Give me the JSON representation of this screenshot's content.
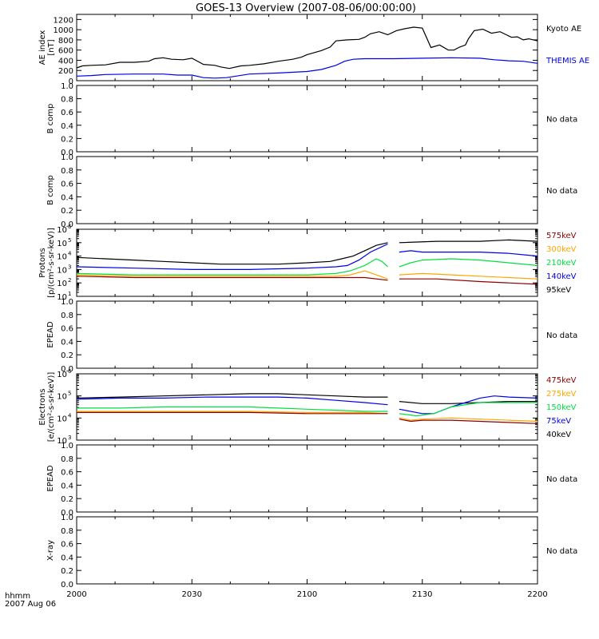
{
  "title": "GOES-13 Overview (2007-08-06/00:00:00)",
  "x_axis": {
    "ticks": [
      "2000",
      "2030",
      "2100",
      "2130",
      "2200"
    ],
    "label_line1": "hhmm",
    "label_line2": "2007 Aug 06"
  },
  "colors": {
    "black": "#000000",
    "blue": "#0000e6",
    "green": "#00e040",
    "orange": "#ffa500",
    "darkred": "#8b0000"
  },
  "no_data_label": "No data",
  "chart_data": [
    {
      "id": "ae",
      "type": "line",
      "ylabel": [
        "AE index",
        "[nT]"
      ],
      "yticks": [
        "1200",
        "1000",
        "800",
        "600",
        "400",
        "200",
        "0"
      ],
      "ylim": [
        0,
        1300
      ],
      "legend": [
        {
          "label": "Kyoto AE",
          "color": "#000000"
        },
        {
          "label": "THEMIS AE",
          "color": "#0000e6"
        }
      ],
      "series": [
        {
          "name": "Kyoto AE",
          "color": "#000000",
          "x": [
            0,
            2,
            5,
            10,
            15,
            20,
            25,
            27,
            30,
            33,
            37,
            40,
            44,
            48,
            50,
            53,
            57,
            60,
            65,
            70,
            75,
            78,
            80,
            85,
            88,
            90,
            94,
            98,
            100,
            102,
            105,
            108,
            111,
            114,
            117,
            120,
            123,
            126,
            129,
            131,
            133,
            135,
            136,
            138,
            141,
            144,
            147,
            151,
            153,
            155,
            157,
            160
          ],
          "values": [
            250,
            290,
            300,
            310,
            360,
            360,
            380,
            430,
            450,
            420,
            410,
            440,
            320,
            300,
            270,
            240,
            290,
            300,
            330,
            380,
            420,
            460,
            510,
            590,
            660,
            780,
            800,
            810,
            850,
            920,
            960,
            900,
            980,
            1020,
            1050,
            1030,
            650,
            700,
            600,
            600,
            660,
            700,
            820,
            980,
            1010,
            930,
            960,
            850,
            860,
            800,
            820,
            780
          ]
        },
        {
          "name": "THEMIS AE",
          "color": "#0000e6",
          "x": [
            0,
            5,
            10,
            20,
            30,
            35,
            40,
            44,
            48,
            52,
            60,
            70,
            80,
            85,
            90,
            93,
            96,
            100,
            110,
            120,
            130,
            140,
            145,
            150,
            155,
            160
          ],
          "values": [
            90,
            100,
            120,
            130,
            130,
            110,
            110,
            60,
            50,
            60,
            130,
            150,
            180,
            220,
            300,
            380,
            420,
            430,
            430,
            440,
            450,
            440,
            410,
            390,
            380,
            340
          ]
        }
      ]
    },
    {
      "id": "bcomp1",
      "type": "line",
      "ylabel": [
        "B comp"
      ],
      "yticks": [
        "1.0",
        "0.8",
        "0.6",
        "0.4",
        "0.2",
        "0.0"
      ],
      "ylim": [
        0,
        1
      ],
      "nodata": true,
      "series": []
    },
    {
      "id": "bcomp2",
      "type": "line",
      "ylabel": [
        "B comp"
      ],
      "yticks": [
        "1.0",
        "0.8",
        "0.6",
        "0.4",
        "0.2",
        "0.0"
      ],
      "ylim": [
        0,
        1
      ],
      "nodata": true,
      "series": []
    },
    {
      "id": "protons",
      "type": "line",
      "log": true,
      "ylabel": [
        "Protons",
        "[p/(cm²-s-sr-keV)]"
      ],
      "ytick_exps": [
        "6",
        "5",
        "4",
        "3",
        "2",
        "1"
      ],
      "ylim_log10": [
        1,
        6
      ],
      "legend": [
        {
          "label": "575keV",
          "color": "#8b0000"
        },
        {
          "label": "300keV",
          "color": "#ffa500"
        },
        {
          "label": "210keV",
          "color": "#00e040"
        },
        {
          "label": "140keV",
          "color": "#0000e6"
        },
        {
          "label": "95keV",
          "color": "#000000"
        }
      ],
      "series": [
        {
          "name": "95keV",
          "color": "#000000",
          "x": [
            0,
            10,
            20,
            30,
            40,
            50,
            60,
            70,
            80,
            88,
            92,
            96,
            100,
            104,
            108,
            112,
            125,
            140,
            150,
            160
          ],
          "values": [
            3.9,
            3.8,
            3.7,
            3.6,
            3.5,
            3.4,
            3.4,
            3.4,
            3.5,
            3.6,
            3.8,
            4.0,
            4.4,
            4.8,
            5.0,
            5.0,
            5.1,
            5.1,
            5.2,
            5.1
          ]
        },
        {
          "name": "140keV",
          "color": "#0000e6",
          "x": [
            0,
            20,
            40,
            60,
            80,
            90,
            94,
            98,
            102,
            106,
            108,
            112,
            116,
            120,
            130,
            140,
            150,
            160
          ],
          "values": [
            3.2,
            3.1,
            3.0,
            3.0,
            3.1,
            3.2,
            3.3,
            3.7,
            4.3,
            4.7,
            4.9,
            4.3,
            4.4,
            4.3,
            4.3,
            4.3,
            4.2,
            4.0
          ]
        },
        {
          "name": "210keV",
          "color": "#00e040",
          "x": [
            0,
            20,
            40,
            60,
            80,
            90,
            95,
            100,
            104,
            106,
            108,
            112,
            116,
            120,
            130,
            140,
            150,
            160
          ],
          "values": [
            2.7,
            2.6,
            2.6,
            2.6,
            2.6,
            2.7,
            2.9,
            3.3,
            3.8,
            3.6,
            3.2,
            3.2,
            3.5,
            3.7,
            3.8,
            3.7,
            3.5,
            3.3
          ]
        },
        {
          "name": "300keV",
          "color": "#ffa500",
          "x": [
            0,
            20,
            40,
            60,
            80,
            90,
            95,
            100,
            104,
            108,
            112,
            120,
            130,
            140,
            150,
            160
          ],
          "values": [
            2.6,
            2.5,
            2.5,
            2.5,
            2.5,
            2.5,
            2.6,
            2.9,
            2.6,
            2.3,
            2.6,
            2.7,
            2.6,
            2.5,
            2.4,
            2.3
          ]
        },
        {
          "name": "575keV",
          "color": "#8b0000",
          "x": [
            0,
            20,
            40,
            60,
            80,
            90,
            100,
            108,
            112,
            125,
            140,
            150,
            160
          ],
          "values": [
            2.5,
            2.4,
            2.4,
            2.4,
            2.4,
            2.4,
            2.4,
            2.2,
            2.3,
            2.3,
            2.1,
            2.0,
            1.9
          ]
        }
      ]
    },
    {
      "id": "epead1",
      "type": "line",
      "ylabel": [
        "EPEAD"
      ],
      "yticks": [
        "1.0",
        "0.8",
        "0.6",
        "0.4",
        "0.2",
        "0.0"
      ],
      "ylim": [
        0,
        1
      ],
      "nodata": true,
      "series": []
    },
    {
      "id": "electrons",
      "type": "line",
      "log": true,
      "ylabel": [
        "Electrons",
        "[e/(cm²-s-sr-keV)]"
      ],
      "ytick_exps": [
        "6",
        "5",
        "4",
        "3"
      ],
      "ylim_log10": [
        3,
        6
      ],
      "legend": [
        {
          "label": "475keV",
          "color": "#8b0000"
        },
        {
          "label": "275keV",
          "color": "#ffa500"
        },
        {
          "label": "150keV",
          "color": "#00e040"
        },
        {
          "label": "75keV",
          "color": "#0000e6"
        },
        {
          "label": "40keV",
          "color": "#000000"
        }
      ],
      "series": [
        {
          "name": "40keV",
          "color": "#000000",
          "x": [
            0,
            15,
            30,
            45,
            60,
            70,
            80,
            90,
            100,
            108,
            112,
            120,
            130,
            140,
            150,
            160
          ],
          "values": [
            4.9,
            4.95,
            5.0,
            5.05,
            5.1,
            5.1,
            5.05,
            5.0,
            4.95,
            4.95,
            4.75,
            4.65,
            4.65,
            4.7,
            4.75,
            4.75
          ]
        },
        {
          "name": "75keV",
          "color": "#0000e6",
          "x": [
            0,
            15,
            30,
            45,
            60,
            70,
            80,
            90,
            100,
            108,
            112,
            120,
            124,
            130,
            135,
            140,
            145,
            150,
            160
          ],
          "values": [
            4.85,
            4.9,
            4.9,
            4.95,
            4.95,
            4.95,
            4.9,
            4.8,
            4.7,
            4.6,
            4.4,
            4.2,
            4.2,
            4.5,
            4.7,
            4.9,
            5.0,
            4.95,
            4.9
          ]
        },
        {
          "name": "150keV",
          "color": "#00e040",
          "x": [
            0,
            15,
            30,
            45,
            60,
            70,
            80,
            90,
            100,
            108,
            112,
            118,
            124,
            130,
            140,
            150,
            160
          ],
          "values": [
            4.45,
            4.45,
            4.5,
            4.5,
            4.5,
            4.45,
            4.4,
            4.35,
            4.3,
            4.3,
            4.2,
            4.1,
            4.2,
            4.5,
            4.7,
            4.7,
            4.7
          ]
        },
        {
          "name": "275keV",
          "color": "#ffa500",
          "x": [
            0,
            20,
            40,
            60,
            80,
            100,
            108,
            112,
            116,
            120,
            130,
            140,
            150,
            160
          ],
          "values": [
            4.3,
            4.3,
            4.3,
            4.3,
            4.25,
            4.25,
            4.2,
            4.0,
            3.9,
            3.95,
            4.0,
            3.95,
            3.9,
            3.85
          ]
        },
        {
          "name": "475keV",
          "color": "#8b0000",
          "x": [
            0,
            20,
            40,
            60,
            80,
            100,
            108,
            112,
            116,
            120,
            130,
            140,
            150,
            160
          ],
          "values": [
            4.25,
            4.25,
            4.25,
            4.25,
            4.2,
            4.2,
            4.2,
            3.95,
            3.85,
            3.9,
            3.9,
            3.85,
            3.8,
            3.75
          ]
        }
      ]
    },
    {
      "id": "epead2",
      "type": "line",
      "ylabel": [
        "EPEAD"
      ],
      "yticks": [
        "1.0",
        "0.8",
        "0.6",
        "0.4",
        "0.2",
        "0.0"
      ],
      "ylim": [
        0,
        1
      ],
      "nodata": true,
      "series": []
    },
    {
      "id": "xray",
      "type": "line",
      "ylabel": [
        "X-ray"
      ],
      "yticks": [
        "1.0",
        "0.8",
        "0.6",
        "0.4",
        "0.2",
        "0.0"
      ],
      "ylim": [
        0,
        1
      ],
      "nodata": true,
      "series": []
    }
  ]
}
